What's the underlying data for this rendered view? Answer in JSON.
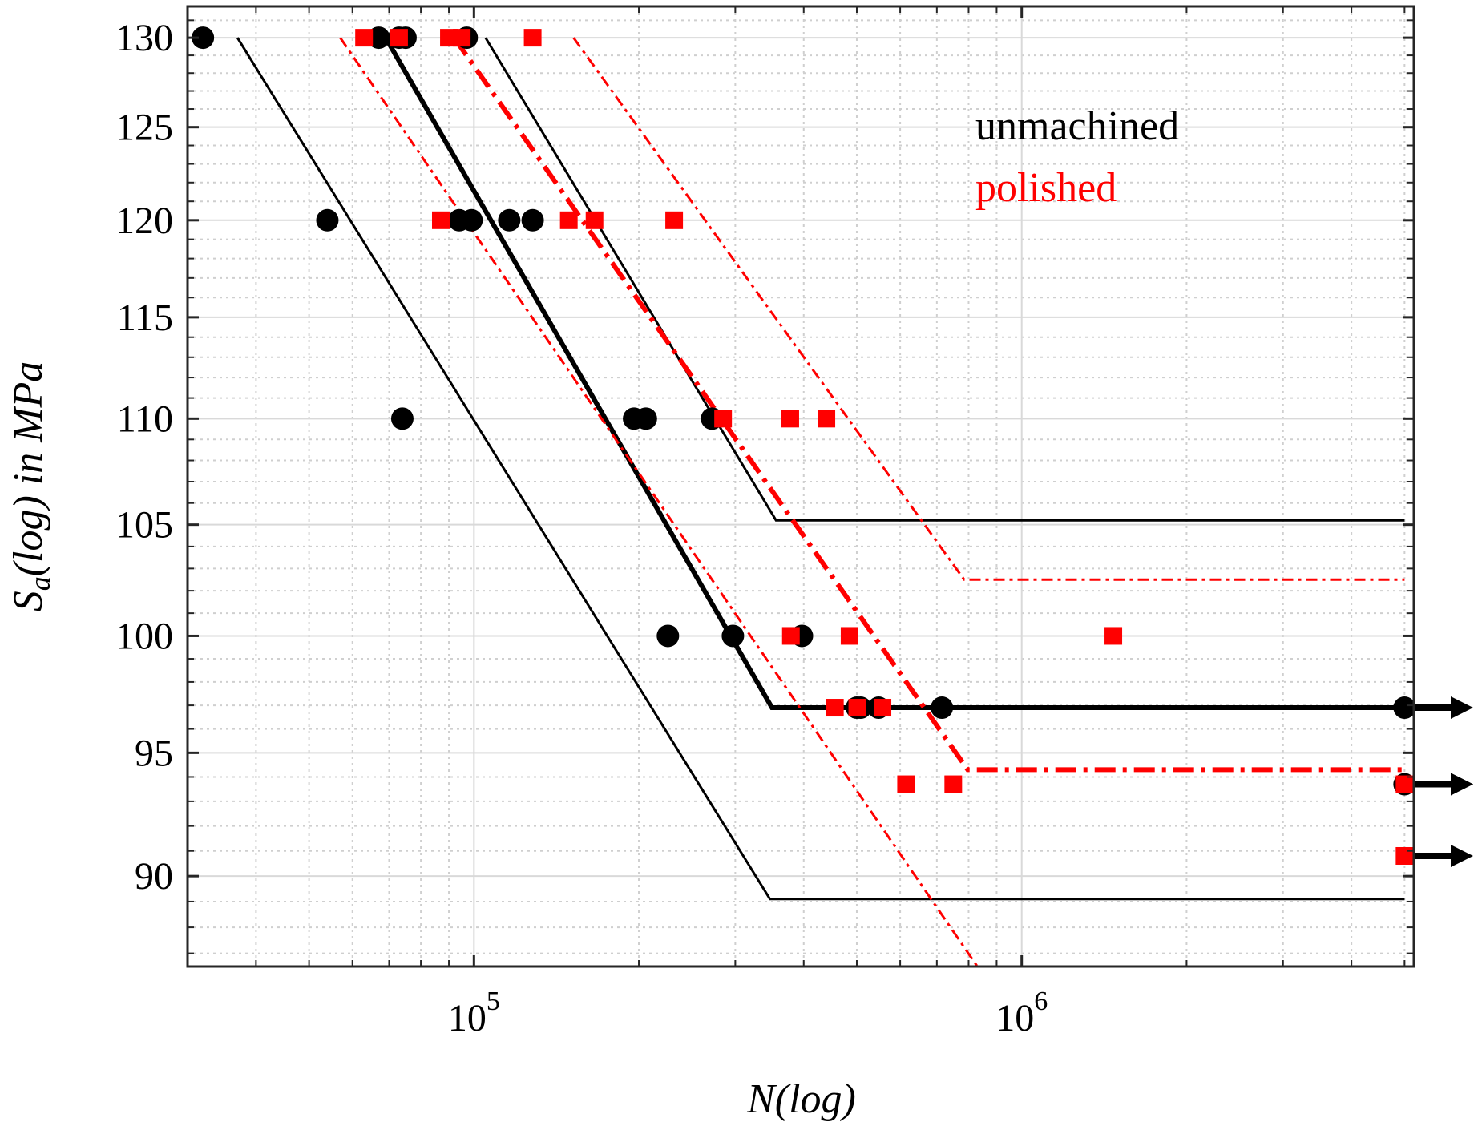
{
  "chart_data": {
    "type": "scatter",
    "title": "",
    "xlabel": "N(log)",
    "ylabel": "S_a(log) in MPa",
    "xscale": "log",
    "yscale": "log",
    "xlim": [
      30000,
      5200000
    ],
    "ylim": [
      86.5,
      131.8
    ],
    "grid": true,
    "x_ticks": [
      {
        "value": 100000,
        "base": "10",
        "exp": "5"
      },
      {
        "value": 1000000,
        "base": "10",
        "exp": "6"
      }
    ],
    "y_ticks": [
      90,
      95,
      100,
      105,
      110,
      115,
      120,
      125,
      130
    ],
    "legend": {
      "position": "top-right",
      "entries": [
        {
          "label": "unmachined",
          "color": "#000000"
        },
        {
          "label": "polished",
          "color": "#ff0000"
        }
      ]
    },
    "series": [
      {
        "name": "unmachined",
        "marker": "circle",
        "color": "#000000",
        "points": [
          {
            "x": 32000,
            "y": 130
          },
          {
            "x": 67000,
            "y": 130
          },
          {
            "x": 73000,
            "y": 130
          },
          {
            "x": 75000,
            "y": 130
          },
          {
            "x": 97000,
            "y": 130
          },
          {
            "x": 54000,
            "y": 120
          },
          {
            "x": 94000,
            "y": 120
          },
          {
            "x": 99000,
            "y": 120
          },
          {
            "x": 116000,
            "y": 120
          },
          {
            "x": 128000,
            "y": 120
          },
          {
            "x": 74000,
            "y": 110
          },
          {
            "x": 196000,
            "y": 110
          },
          {
            "x": 206000,
            "y": 110
          },
          {
            "x": 272000,
            "y": 110
          },
          {
            "x": 226000,
            "y": 100
          },
          {
            "x": 297000,
            "y": 100
          },
          {
            "x": 397000,
            "y": 100
          },
          {
            "x": 500000,
            "y": 96.9
          },
          {
            "x": 508000,
            "y": 96.9
          },
          {
            "x": 548000,
            "y": 96.9
          },
          {
            "x": 715000,
            "y": 96.9
          },
          {
            "x": 5000000,
            "y": 96.9,
            "runout": true
          },
          {
            "x": 5000000,
            "y": 93.7,
            "runout": true
          }
        ]
      },
      {
        "name": "polished",
        "marker": "square",
        "color": "#ff0000",
        "points": [
          {
            "x": 63000,
            "y": 130
          },
          {
            "x": 73000,
            "y": 130
          },
          {
            "x": 90000,
            "y": 130
          },
          {
            "x": 95000,
            "y": 130
          },
          {
            "x": 128000,
            "y": 130
          },
          {
            "x": 87000,
            "y": 120
          },
          {
            "x": 149000,
            "y": 120
          },
          {
            "x": 166000,
            "y": 120
          },
          {
            "x": 232000,
            "y": 120
          },
          {
            "x": 285000,
            "y": 110
          },
          {
            "x": 378000,
            "y": 110
          },
          {
            "x": 440000,
            "y": 110
          },
          {
            "x": 379000,
            "y": 100
          },
          {
            "x": 485000,
            "y": 100
          },
          {
            "x": 1470000,
            "y": 100
          },
          {
            "x": 456000,
            "y": 96.9
          },
          {
            "x": 501000,
            "y": 96.9
          },
          {
            "x": 557000,
            "y": 96.9
          },
          {
            "x": 615000,
            "y": 93.7
          },
          {
            "x": 750000,
            "y": 93.7
          },
          {
            "x": 5000000,
            "y": 93.7,
            "runout": true
          },
          {
            "x": 5000000,
            "y": 90.8,
            "runout": true
          }
        ]
      }
    ],
    "lines": [
      {
        "name": "unmachined-mean",
        "color": "#000000",
        "style": "solid",
        "weight": "thick",
        "points": [
          [
            69000,
            130
          ],
          [
            350000,
            96.9
          ],
          [
            5000000,
            96.9
          ]
        ]
      },
      {
        "name": "unmachined-lower",
        "color": "#000000",
        "style": "solid",
        "weight": "thin",
        "points": [
          [
            37000,
            130
          ],
          [
            347000,
            89.1
          ],
          [
            5000000,
            89.1
          ]
        ]
      },
      {
        "name": "unmachined-upper",
        "color": "#000000",
        "style": "solid",
        "weight": "thin",
        "points": [
          [
            105000,
            130
          ],
          [
            356000,
            105.2
          ],
          [
            5000000,
            105.2
          ]
        ]
      },
      {
        "name": "polished-mean",
        "color": "#ff0000",
        "style": "dashdot",
        "weight": "thick",
        "points": [
          [
            92000,
            130
          ],
          [
            797000,
            94.3
          ],
          [
            5000000,
            94.3
          ]
        ]
      },
      {
        "name": "polished-lower",
        "color": "#ff0000",
        "style": "dashdot",
        "weight": "thin",
        "points": [
          [
            57000,
            130
          ],
          [
            830000,
            86.5
          ],
          [
            5000000,
            86.5
          ]
        ]
      },
      {
        "name": "polished-upper",
        "color": "#ff0000",
        "style": "dashdot",
        "weight": "thin",
        "points": [
          [
            152000,
            130
          ],
          [
            785000,
            102.5
          ],
          [
            5000000,
            102.5
          ]
        ]
      }
    ]
  }
}
